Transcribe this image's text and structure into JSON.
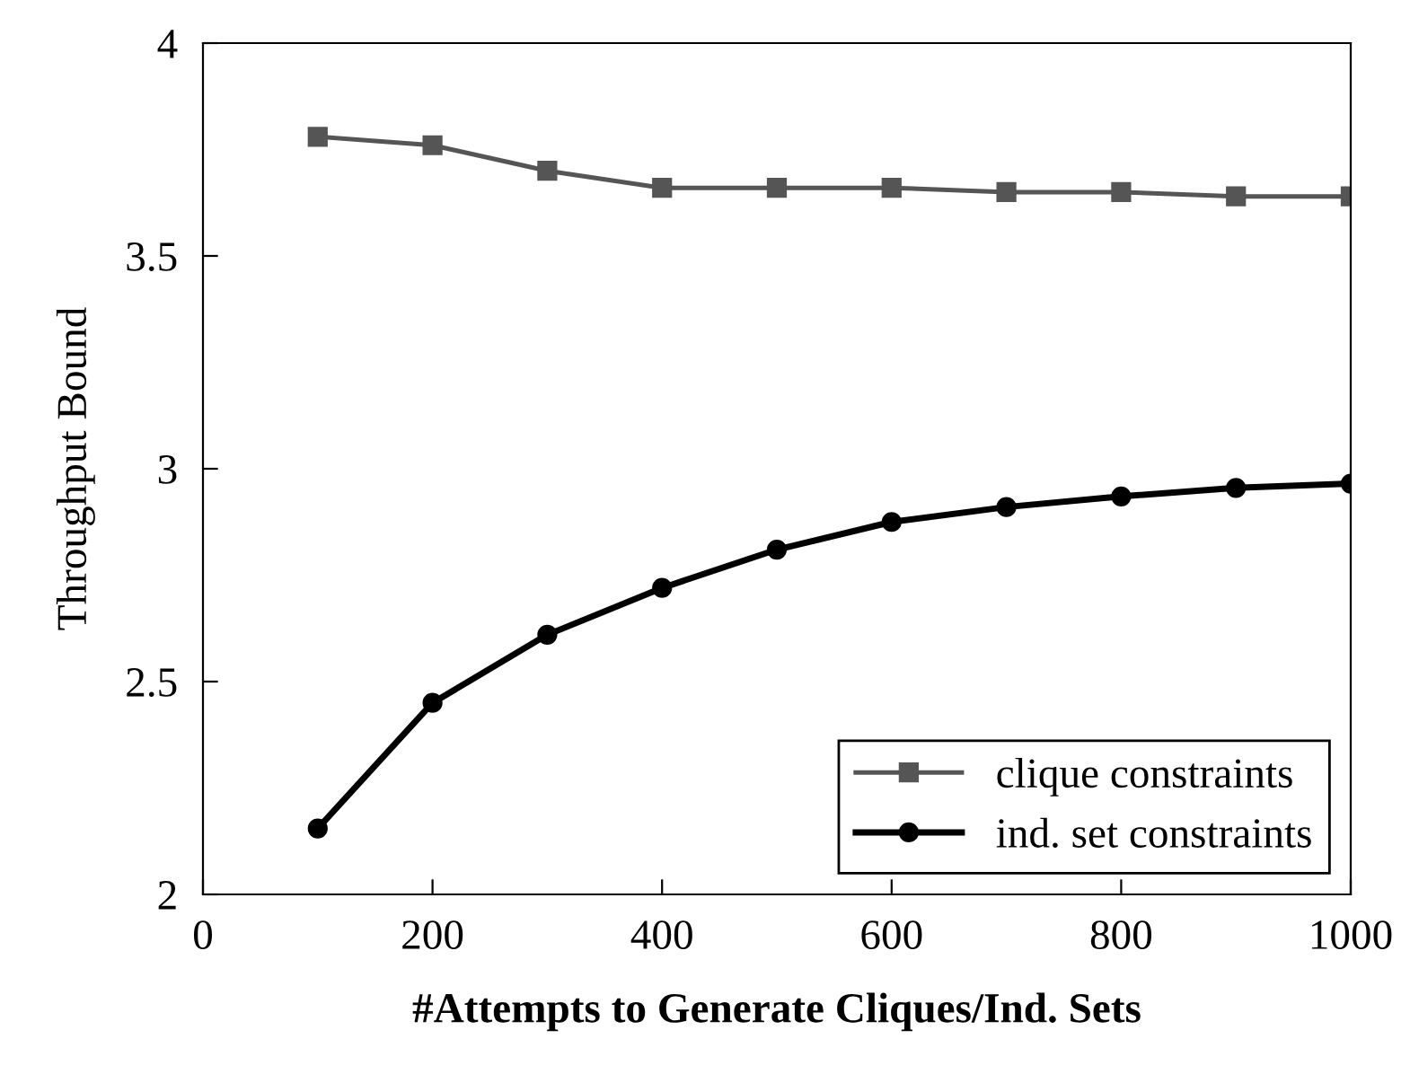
{
  "chart_data": {
    "type": "line",
    "xlabel": "#Attempts to Generate Cliques/Ind. Sets",
    "ylabel": "Throughput Bound",
    "x": [
      100,
      200,
      300,
      400,
      500,
      600,
      700,
      800,
      900,
      1000
    ],
    "series": [
      {
        "name": "clique constraints",
        "color": "#555555",
        "marker": "square",
        "values": [
          3.78,
          3.76,
          3.7,
          3.66,
          3.66,
          3.66,
          3.65,
          3.65,
          3.64,
          3.64
        ]
      },
      {
        "name": "ind. set constraints",
        "color": "#000000",
        "marker": "circle",
        "values": [
          2.155,
          2.45,
          2.61,
          2.72,
          2.81,
          2.875,
          2.91,
          2.935,
          2.955,
          2.965
        ]
      }
    ],
    "xlim": [
      0,
      1000
    ],
    "xticks": [
      0,
      200,
      400,
      600,
      800,
      1000
    ],
    "ylim": [
      2,
      4
    ],
    "yticks": [
      2,
      2.5,
      3,
      3.5,
      4
    ],
    "grid": false,
    "legend": "bottom right",
    "line_style": "solid"
  }
}
